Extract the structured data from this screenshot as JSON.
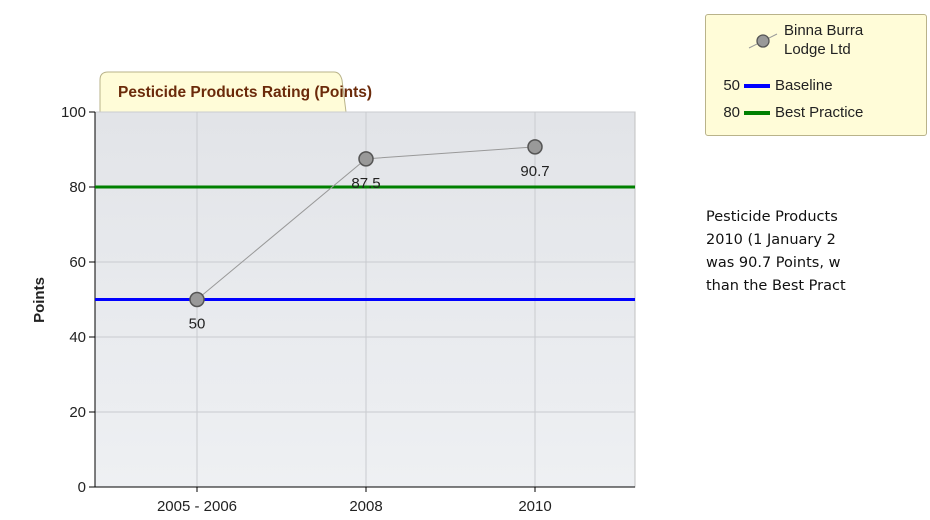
{
  "chart_data": {
    "type": "line",
    "title": "Pesticide Products Rating (Points)",
    "y_label": "Points",
    "categories": [
      "2005 - 2006",
      "2008",
      "2010"
    ],
    "series": [
      {
        "name": "Binna Burra Lodge Ltd",
        "color": "#999999",
        "values": [
          50,
          87.5,
          90.7
        ]
      }
    ],
    "reference_lines": [
      {
        "name": "Baseline",
        "value": 50,
        "color": "#0000ff"
      },
      {
        "name": "Best Practice",
        "value": 80,
        "color": "#008000"
      }
    ],
    "ylim": [
      0,
      100
    ],
    "yticks": [
      0,
      20,
      40,
      60,
      80,
      100
    ],
    "grid": true
  },
  "description": [
    "Pesticide Products",
    "2010 (1 January 2",
    "was 90.7 Points, w",
    "than the Best Pract"
  ]
}
